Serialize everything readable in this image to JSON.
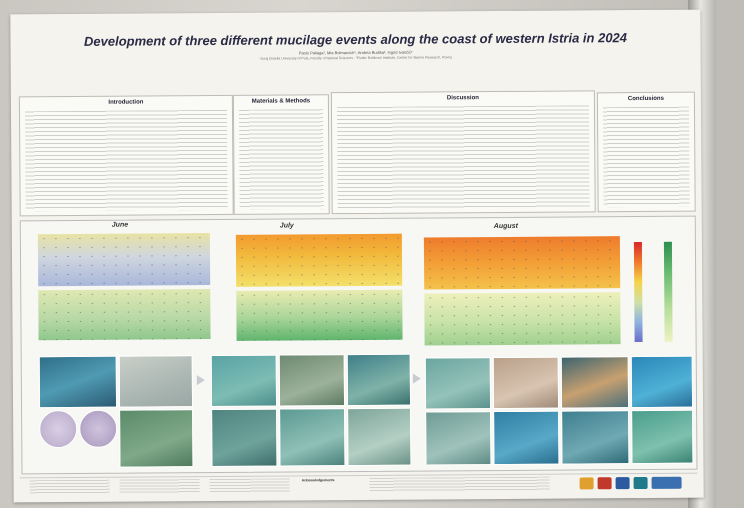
{
  "poster": {
    "title": "Development of three different mucilage events along the coast of western Istria in 2024",
    "authors": "Paolo Paliaga¹, Mia Bolmarcich¹, Andrea Budiša², Ingrid Ivančić²",
    "affiliation": "¹Juraj Dobrila University of Pula, Faculty of Natural Sciences · ²Ruđer Bošković Institute, Center for Marine Research, Rovinj"
  },
  "sections": {
    "introduction": "Introduction",
    "materials": "Materials & Methods",
    "discussion": "Discussion",
    "conclusions": "Conclusions"
  },
  "months": {
    "june": "June",
    "july": "July",
    "august": "August"
  },
  "footer": {
    "acknowledgements": "Acknowledgements",
    "references": "References"
  },
  "colors": {
    "poster_bg": "#f4f3ee",
    "title_color": "#2a2a44",
    "warm": "#ee7b2c",
    "cool": "#a9b7da",
    "green": "#5fb56d"
  }
}
